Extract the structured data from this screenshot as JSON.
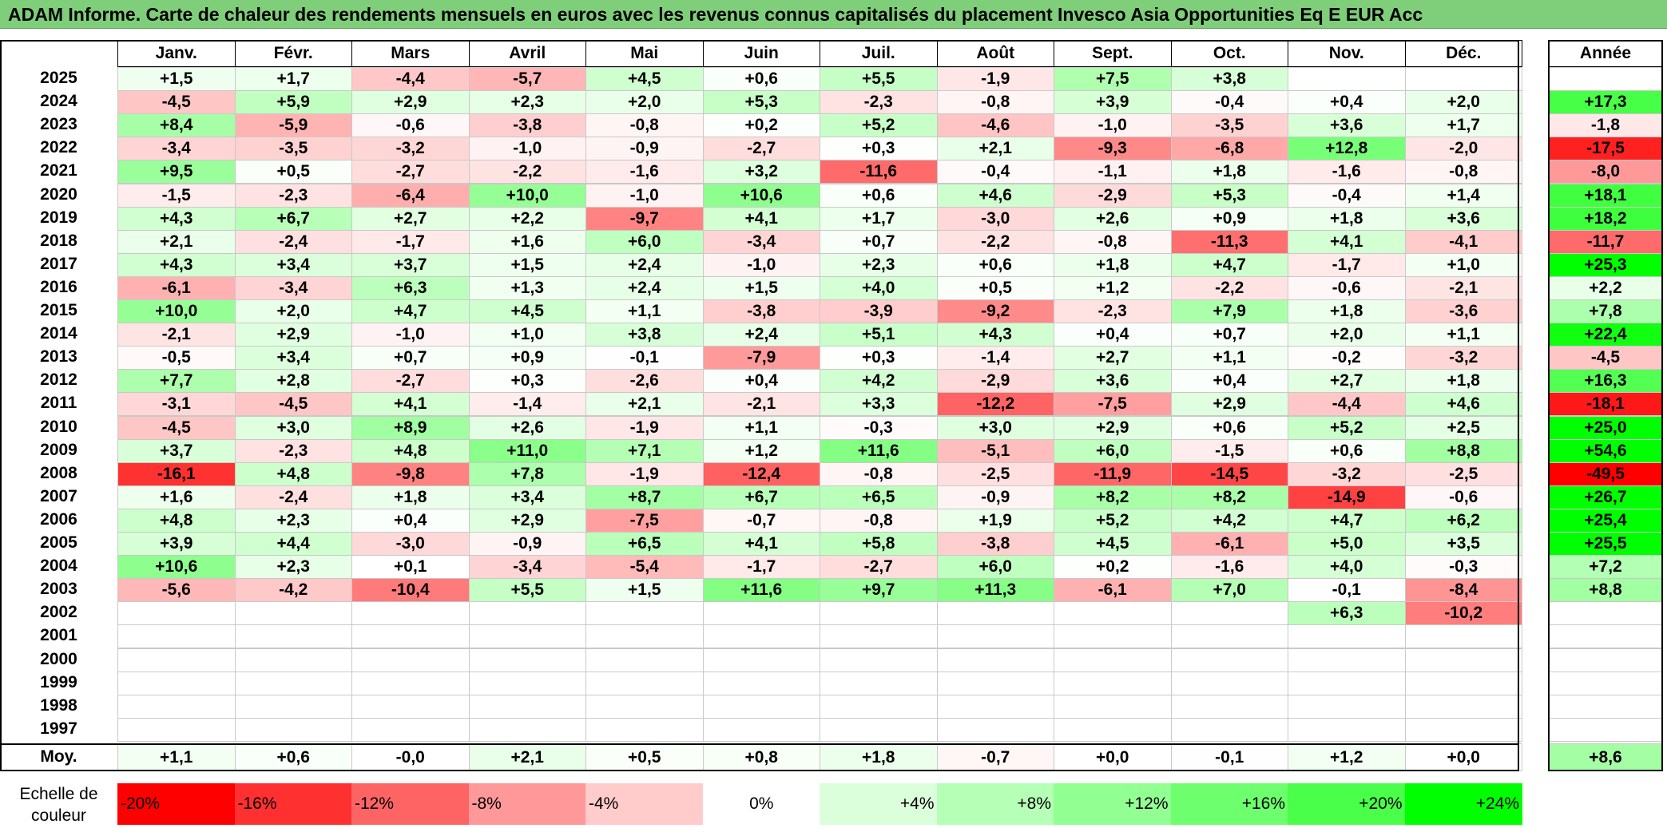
{
  "title": "ADAM Informe. Carte de chaleur des rendements mensuels en euros avec les revenus connus capitalisés du placement Invesco Asia Opportunities Eq E EUR Acc",
  "chart_data": {
    "type": "heatmap",
    "columns": [
      "Janv.",
      "Févr.",
      "Mars",
      "Avril",
      "Mai",
      "Juin",
      "Juil.",
      "Août",
      "Sept.",
      "Oct.",
      "Nov.",
      "Déc."
    ],
    "year_column_label": "Année",
    "rows": [
      {
        "year": "2025",
        "months": [
          "+1,5",
          "+1,7",
          "-4,4",
          "-5,7",
          "+4,5",
          "+0,6",
          "+5,5",
          "-1,9",
          "+7,5",
          "+3,8",
          "",
          ""
        ],
        "annual": ""
      },
      {
        "year": "2024",
        "months": [
          "-4,5",
          "+5,9",
          "+2,9",
          "+2,3",
          "+2,0",
          "+5,3",
          "-2,3",
          "-0,8",
          "+3,9",
          "-0,4",
          "+0,4",
          "+2,0"
        ],
        "annual": "+17,3"
      },
      {
        "year": "2023",
        "months": [
          "+8,4",
          "-5,9",
          "-0,6",
          "-3,8",
          "-0,8",
          "+0,2",
          "+5,2",
          "-4,6",
          "-1,0",
          "-3,5",
          "+3,6",
          "+1,7"
        ],
        "annual": "-1,8"
      },
      {
        "year": "2022",
        "months": [
          "-3,4",
          "-3,5",
          "-3,2",
          "-1,0",
          "-0,9",
          "-2,7",
          "+0,3",
          "+2,1",
          "-9,3",
          "-6,8",
          "+12,8",
          "-2,0"
        ],
        "annual": "-17,5"
      },
      {
        "year": "2021",
        "months": [
          "+9,5",
          "+0,5",
          "-2,7",
          "-2,2",
          "-1,6",
          "+3,2",
          "-11,6",
          "-0,4",
          "-1,1",
          "+1,8",
          "-1,6",
          "-0,8"
        ],
        "annual": "-8,0"
      },
      {
        "year": "2020",
        "months": [
          "-1,5",
          "-2,3",
          "-6,4",
          "+10,0",
          "-1,0",
          "+10,6",
          "+0,6",
          "+4,6",
          "-2,9",
          "+5,3",
          "-0,4",
          "+1,4"
        ],
        "annual": "+18,1"
      },
      {
        "year": "2019",
        "months": [
          "+4,3",
          "+6,7",
          "+2,7",
          "+2,2",
          "-9,7",
          "+4,1",
          "+1,7",
          "-3,0",
          "+2,6",
          "+0,9",
          "+1,8",
          "+3,6"
        ],
        "annual": "+18,2"
      },
      {
        "year": "2018",
        "months": [
          "+2,1",
          "-2,4",
          "-1,7",
          "+1,6",
          "+6,0",
          "-3,4",
          "+0,7",
          "-2,2",
          "-0,8",
          "-11,3",
          "+4,1",
          "-4,1"
        ],
        "annual": "-11,7"
      },
      {
        "year": "2017",
        "months": [
          "+4,3",
          "+3,4",
          "+3,7",
          "+1,5",
          "+2,4",
          "-1,0",
          "+2,3",
          "+0,6",
          "+1,8",
          "+4,7",
          "-1,7",
          "+1,0"
        ],
        "annual": "+25,3"
      },
      {
        "year": "2016",
        "months": [
          "-6,1",
          "-3,4",
          "+6,3",
          "+1,3",
          "+2,4",
          "+1,5",
          "+4,0",
          "+0,5",
          "+1,2",
          "-2,2",
          "-0,6",
          "-2,1"
        ],
        "annual": "+2,2"
      },
      {
        "year": "2015",
        "months": [
          "+10,0",
          "+2,0",
          "+4,7",
          "+4,5",
          "+1,1",
          "-3,8",
          "-3,9",
          "-9,2",
          "-2,3",
          "+7,9",
          "+1,8",
          "-3,6"
        ],
        "annual": "+7,8"
      },
      {
        "year": "2014",
        "months": [
          "-2,1",
          "+2,9",
          "-1,0",
          "+1,0",
          "+3,8",
          "+2,4",
          "+5,1",
          "+4,3",
          "+0,4",
          "+0,7",
          "+2,0",
          "+1,1"
        ],
        "annual": "+22,4"
      },
      {
        "year": "2013",
        "months": [
          "-0,5",
          "+3,4",
          "+0,7",
          "+0,9",
          "-0,1",
          "-7,9",
          "+0,3",
          "-1,4",
          "+2,7",
          "+1,1",
          "-0,2",
          "-3,2"
        ],
        "annual": "-4,5"
      },
      {
        "year": "2012",
        "months": [
          "+7,7",
          "+2,8",
          "-2,7",
          "+0,3",
          "-2,6",
          "+0,4",
          "+4,2",
          "-2,9",
          "+3,6",
          "+0,4",
          "+2,7",
          "+1,8"
        ],
        "annual": "+16,3"
      },
      {
        "year": "2011",
        "months": [
          "-3,1",
          "-4,5",
          "+4,1",
          "-1,4",
          "+2,1",
          "-2,1",
          "+3,3",
          "-12,2",
          "-7,5",
          "+2,9",
          "-4,4",
          "+4,6"
        ],
        "annual": "-18,1"
      },
      {
        "year": "2010",
        "months": [
          "-4,5",
          "+3,0",
          "+8,9",
          "+2,6",
          "-1,9",
          "+1,1",
          "-0,3",
          "+3,0",
          "+2,9",
          "+0,6",
          "+5,2",
          "+2,5"
        ],
        "annual": "+25,0"
      },
      {
        "year": "2009",
        "months": [
          "+3,7",
          "-2,3",
          "+4,8",
          "+11,0",
          "+7,1",
          "+1,2",
          "+11,6",
          "-5,1",
          "+6,0",
          "-1,5",
          "+0,6",
          "+8,8"
        ],
        "annual": "+54,6"
      },
      {
        "year": "2008",
        "months": [
          "-16,1",
          "+4,8",
          "-9,8",
          "+7,8",
          "-1,9",
          "-12,4",
          "-0,8",
          "-2,5",
          "-11,9",
          "-14,5",
          "-3,2",
          "-2,5"
        ],
        "annual": "-49,5"
      },
      {
        "year": "2007",
        "months": [
          "+1,6",
          "-2,4",
          "+1,8",
          "+3,4",
          "+8,7",
          "+6,7",
          "+6,5",
          "-0,9",
          "+8,2",
          "+8,2",
          "-14,9",
          "-0,6"
        ],
        "annual": "+26,7"
      },
      {
        "year": "2006",
        "months": [
          "+4,8",
          "+2,3",
          "+0,4",
          "+2,9",
          "-7,5",
          "-0,7",
          "-0,8",
          "+1,9",
          "+5,2",
          "+4,2",
          "+4,7",
          "+6,2"
        ],
        "annual": "+25,4"
      },
      {
        "year": "2005",
        "months": [
          "+3,9",
          "+4,4",
          "-3,0",
          "-0,9",
          "+6,5",
          "+4,1",
          "+5,8",
          "-3,8",
          "+4,5",
          "-6,1",
          "+5,0",
          "+3,5"
        ],
        "annual": "+25,5"
      },
      {
        "year": "2004",
        "months": [
          "+10,6",
          "+2,3",
          "+0,1",
          "-3,4",
          "-5,4",
          "-1,7",
          "-2,7",
          "+6,0",
          "+0,2",
          "-1,6",
          "+4,0",
          "-0,3"
        ],
        "annual": "+7,2"
      },
      {
        "year": "2003",
        "months": [
          "-5,6",
          "-4,2",
          "-10,4",
          "+5,5",
          "+1,5",
          "+11,6",
          "+9,7",
          "+11,3",
          "-6,1",
          "+7,0",
          "-0,1",
          "-8,4"
        ],
        "annual": "+8,8"
      },
      {
        "year": "2002",
        "months": [
          "",
          "",
          "",
          "",
          "",
          "",
          "",
          "",
          "",
          "",
          "+6,3",
          "-10,2"
        ],
        "annual": ""
      },
      {
        "year": "2001",
        "months": [
          "",
          "",
          "",
          "",
          "",
          "",
          "",
          "",
          "",
          "",
          "",
          ""
        ],
        "annual": ""
      },
      {
        "year": "2000",
        "months": [
          "",
          "",
          "",
          "",
          "",
          "",
          "",
          "",
          "",
          "",
          "",
          ""
        ],
        "annual": ""
      },
      {
        "year": "1999",
        "months": [
          "",
          "",
          "",
          "",
          "",
          "",
          "",
          "",
          "",
          "",
          "",
          ""
        ],
        "annual": ""
      },
      {
        "year": "1998",
        "months": [
          "",
          "",
          "",
          "",
          "",
          "",
          "",
          "",
          "",
          "",
          "",
          ""
        ],
        "annual": ""
      },
      {
        "year": "1997",
        "months": [
          "",
          "",
          "",
          "",
          "",
          "",
          "",
          "",
          "",
          "",
          "",
          ""
        ],
        "annual": ""
      }
    ],
    "average_label": "Moy.",
    "averages": [
      "+1,1",
      "+0,6",
      "-0,0",
      "+2,1",
      "+0,5",
      "+0,8",
      "+1,8",
      "-0,7",
      "+0,0",
      "-0,1",
      "+1,2",
      "+0,0"
    ],
    "average_annual": "+8,6",
    "color_scale_label": "Echelle de couleur",
    "color_scale": [
      {
        "label": "-20%",
        "value": -20,
        "color": "#ff0000"
      },
      {
        "label": "-16%",
        "value": -16,
        "color": "#ff3030"
      },
      {
        "label": "-12%",
        "value": -12,
        "color": "#ff6464"
      },
      {
        "label": "-8%",
        "value": -8,
        "color": "#ff9898"
      },
      {
        "label": "-4%",
        "value": -4,
        "color": "#ffcbcb"
      },
      {
        "label": "0%",
        "value": 0,
        "color": "#ffffff"
      },
      {
        "label": "+4%",
        "value": 4,
        "color": "#dbffdb"
      },
      {
        "label": "+8%",
        "value": 8,
        "color": "#b6ffb6"
      },
      {
        "label": "+12%",
        "value": 12,
        "color": "#92ff92"
      },
      {
        "label": "+16%",
        "value": 16,
        "color": "#6dff6d"
      },
      {
        "label": "+20%",
        "value": 20,
        "color": "#49ff49"
      },
      {
        "label": "+24%",
        "value": 24,
        "color": "#00ff00"
      }
    ]
  }
}
